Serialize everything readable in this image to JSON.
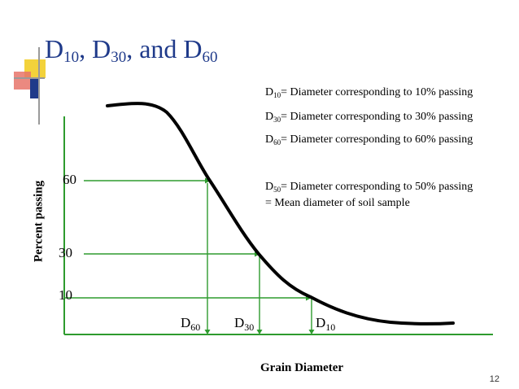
{
  "slide": {
    "title": {
      "t1": "D",
      "s1": "10",
      "t2": ", D",
      "s2": "30",
      "t3": ", and D",
      "s3": "60"
    },
    "definitions": [
      {
        "base": "D",
        "sub": "10",
        "text": "= Diameter corresponding to 10% passing"
      },
      {
        "base": "D",
        "sub": "30",
        "text": "= Diameter corresponding to 30% passing"
      },
      {
        "base": "D",
        "sub": "60",
        "text": "= Diameter corresponding to 60% passing"
      },
      {
        "base": "D",
        "sub": "50",
        "text": "= Diameter corresponding to 50% passing"
      }
    ],
    "mean_line": "= Mean diameter of soil sample",
    "y_axis_label": "Percent passing",
    "x_axis_label": "Grain Diameter",
    "y_ticks": [
      "60",
      "30",
      "10"
    ],
    "d_labels": [
      {
        "base": "D",
        "sub": "60"
      },
      {
        "base": "D",
        "sub": "30"
      },
      {
        "base": "D",
        "sub": "10"
      }
    ],
    "page_number": "12",
    "colors": {
      "title": "#1f3a8a",
      "axes": "#2e9b2e",
      "guides": "#2e9b2e",
      "curve": "#000000",
      "accent_yellow": "#f3d23b",
      "accent_red": "#e8746a",
      "accent_blue": "#1f3a8a"
    }
  }
}
